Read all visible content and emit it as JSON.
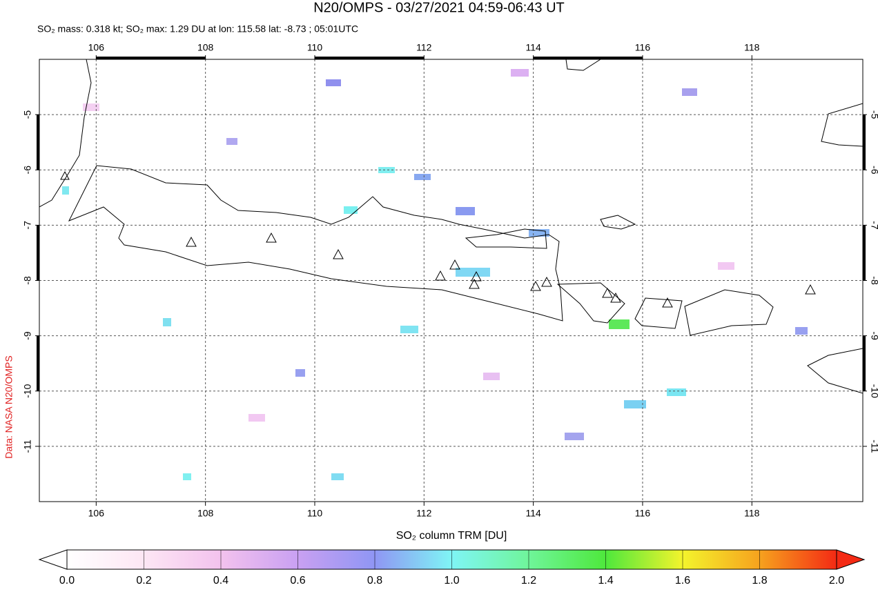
{
  "chart_data": {
    "type": "map",
    "title": "N20/OMPS - 03/27/2021 04:59-06:43 UT",
    "subtitle": "SO₂ mass: 0.318 kt; SO₂ max: 1.29 DU at lon: 115.58 lat: -8.73 ; 05:01UTC",
    "side_label": "Data: NASA N20/OMPS",
    "xlim": [
      104.96,
      120.03
    ],
    "ylim": [
      -12,
      -4
    ],
    "xticks": [
      106,
      108,
      110,
      112,
      114,
      116,
      118
    ],
    "yticks": [
      -5,
      -6,
      -7,
      -8,
      -9,
      -10,
      -11
    ],
    "grid": true,
    "colorbar": {
      "label": "SO₂ column TRM [DU]",
      "lim": [
        0,
        2
      ],
      "ticks": [
        {
          "value": 0,
          "label": "0.0"
        },
        0.2,
        0.4,
        0.6,
        0.8,
        {
          "value": 1,
          "label": "1.0"
        },
        1.2,
        1.4,
        1.6,
        1.8,
        {
          "value": 2,
          "label": "2.0"
        }
      ]
    }
  }
}
